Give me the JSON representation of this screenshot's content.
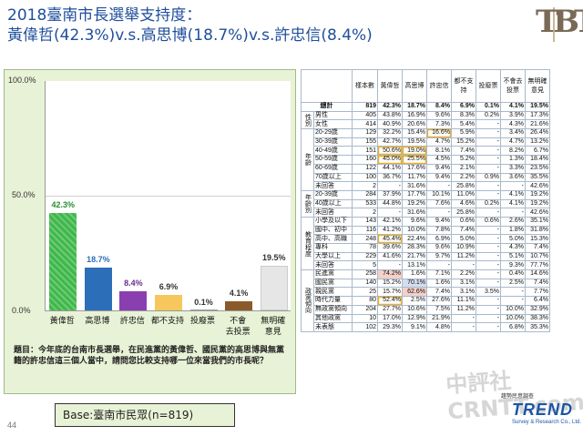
{
  "title": {
    "line1": "2018臺南市長選舉支持度：",
    "line2": "黃偉哲(42.3%)v.s.高思博(18.7%)v.s.許忠信(8.4%)"
  },
  "logo": {
    "text": "TBT"
  },
  "colors": {
    "title": "#1f4e9c",
    "chart_bg": "#e8f2d6",
    "table_border": "#a9b9cc"
  },
  "chart_data": {
    "type": "bar",
    "categories": [
      "黃偉哲",
      "高思博",
      "許忠信",
      "都不支持",
      "投廢票",
      "不會去投票",
      "無明確意見"
    ],
    "category_lines": [
      [
        "黃偉哲"
      ],
      [
        "高思博"
      ],
      [
        "許忠信"
      ],
      [
        "都不支持"
      ],
      [
        "投廢票"
      ],
      [
        "不會",
        "去投票"
      ],
      [
        "無明確",
        "意見"
      ]
    ],
    "values": [
      42.3,
      18.7,
      8.4,
      6.9,
      0.1,
      4.1,
      19.5
    ],
    "value_labels": [
      "42.3%",
      "18.7%",
      "8.4%",
      "6.9%",
      "0.1%",
      "4.1%",
      "19.5%"
    ],
    "bar_colors": [
      "#3fb84a",
      "#2c6fb8",
      "#8a3fb0",
      "#f6c75c",
      "#9aa0a6",
      "#8b5a2b",
      "#e6e6e6"
    ],
    "label_colors": [
      "#2a8c33",
      "#2c6fb8",
      "#6b2d8c",
      "#333333",
      "#333333",
      "#333333",
      "#333333"
    ],
    "yticks": [
      "100.0%",
      "50.0%",
      "0.0%"
    ],
    "ylim": [
      0,
      100
    ]
  },
  "question": "題目：今年底的台南市長選舉，在民進黨的黃偉哲、國民黨的高思博與無黨籍的許忠信這三個人當中，請問您比較支持哪一位來當我們的市長呢？",
  "base": "Base:臺南市民眾(n=819)",
  "page_number": "44",
  "trend": {
    "brand": "TREND",
    "sub": "Survey & Research Co., Ltd.",
    "pre": "趨勢民意調查"
  },
  "watermark": "中評社 CRNTT.com",
  "table": {
    "headers": [
      "樣本數",
      "黃偉哲",
      "高思博",
      "許忠信",
      "都不支持",
      "投廢票",
      "不會去投票",
      "無明確意見"
    ],
    "total": {
      "label": "總計",
      "cells": [
        "819",
        "42.3%",
        "18.7%",
        "8.4%",
        "6.9%",
        "0.1%",
        "4.1%",
        "19.5%"
      ]
    },
    "groups": [
      {
        "name": "性別",
        "rows": [
          {
            "label": "男性",
            "cells": [
              "405",
              "43.8%",
              "16.9%",
              "9.6%",
              "8.3%",
              "0.2%",
              "3.9%",
              "17.3%"
            ]
          },
          {
            "label": "女性",
            "cells": [
              "414",
              "40.9%",
              "20.6%",
              "7.3%",
              "5.4%",
              "-",
              "4.3%",
              "21.6%"
            ]
          }
        ]
      },
      {
        "name": "年齡",
        "rows": [
          {
            "label": "20-29歲",
            "cells": [
              "129",
              "32.2%",
              "15.4%",
              "16.6%",
              "5.9%",
              "-",
              "3.4%",
              "26.4%"
            ]
          },
          {
            "label": "30-39歲",
            "cells": [
              "155",
              "42.7%",
              "19.5%",
              "4.7%",
              "15.2%",
              "-",
              "4.7%",
              "13.2%"
            ]
          },
          {
            "label": "40-49歲",
            "cells": [
              "151",
              "50.6%",
              "19.0%",
              "8.1%",
              "7.4%",
              "-",
              "8.2%",
              "6.7%"
            ]
          },
          {
            "label": "50-59歲",
            "cells": [
              "160",
              "45.0%",
              "25.5%",
              "4.5%",
              "5.2%",
              "-",
              "1.3%",
              "18.4%"
            ]
          },
          {
            "label": "60-69歲",
            "cells": [
              "122",
              "44.1%",
              "17.6%",
              "9.4%",
              "2.1%",
              "-",
              "3.3%",
              "23.5%"
            ]
          },
          {
            "label": "70歲以上",
            "cells": [
              "100",
              "36.7%",
              "11.7%",
              "9.4%",
              "2.2%",
              "0.9%",
              "3.6%",
              "35.5%"
            ]
          },
          {
            "label": "未回答",
            "cells": [
              "2",
              "-",
              "31.6%",
              "-",
              "25.8%",
              "-",
              "-",
              "42.6%"
            ]
          }
        ]
      },
      {
        "name": "年齡別",
        "rows": [
          {
            "label": "20-39歲",
            "cells": [
              "284",
              "37.9%",
              "17.7%",
              "10.1%",
              "11.0%",
              "-",
              "4.1%",
              "19.2%"
            ]
          },
          {
            "label": "40歲以上",
            "cells": [
              "533",
              "44.8%",
              "19.2%",
              "7.6%",
              "4.6%",
              "0.2%",
              "4.1%",
              "19.2%"
            ]
          },
          {
            "label": "未回答",
            "cells": [
              "2",
              "-",
              "31.6%",
              "-",
              "25.8%",
              "-",
              "-",
              "42.6%"
            ]
          }
        ]
      },
      {
        "name": "教育程度",
        "rows": [
          {
            "label": "小學及以下",
            "cells": [
              "143",
              "42.1%",
              "9.6%",
              "9.4%",
              "0.6%",
              "0.6%",
              "2.6%",
              "35.1%"
            ]
          },
          {
            "label": "國中、初中",
            "cells": [
              "116",
              "41.2%",
              "10.0%",
              "7.8%",
              "7.4%",
              "-",
              "1.8%",
              "31.8%"
            ]
          },
          {
            "label": "高中、高職",
            "cells": [
              "248",
              "45.4%",
              "22.4%",
              "6.9%",
              "5.0%",
              "-",
              "5.0%",
              "15.3%"
            ]
          },
          {
            "label": "專科",
            "cells": [
              "78",
              "39.6%",
              "28.3%",
              "9.6%",
              "10.9%",
              "-",
              "4.3%",
              "7.4%"
            ]
          },
          {
            "label": "大學以上",
            "cells": [
              "229",
              "41.6%",
              "21.7%",
              "9.7%",
              "11.2%",
              "-",
              "5.1%",
              "10.7%"
            ]
          },
          {
            "label": "未回答",
            "cells": [
              "5",
              "-",
              "13.1%",
              "-",
              "-",
              "-",
              "9.3%",
              "77.7%"
            ]
          }
        ]
      },
      {
        "name": "政黨傾向",
        "rows": [
          {
            "label": "民進黨",
            "cells": [
              "258",
              "74.2%",
              "1.6%",
              "7.1%",
              "2.2%",
              "-",
              "0.4%",
              "14.6%"
            ]
          },
          {
            "label": "國民黨",
            "cells": [
              "140",
              "15.2%",
              "70.1%",
              "1.6%",
              "3.1%",
              "-",
              "2.5%",
              "7.4%"
            ]
          },
          {
            "label": "親民黨",
            "cells": [
              "25",
              "15.7%",
              "62.6%",
              "7.4%",
              "3.1%",
              "3.5%",
              "-",
              "7.7%"
            ]
          },
          {
            "label": "時代力量",
            "cells": [
              "80",
              "52.4%",
              "2.5%",
              "27.6%",
              "11.1%",
              "-",
              "-",
              "6.4%"
            ]
          },
          {
            "label": "無政黨傾向",
            "cells": [
              "204",
              "27.7%",
              "10.6%",
              "7.5%",
              "11.2%",
              "-",
              "10.0%",
              "32.9%"
            ]
          },
          {
            "label": "其他政黨",
            "cells": [
              "10",
              "17.0%",
              "12.9%",
              "21.9%",
              "-",
              "-",
              "10.0%",
              "38.3%"
            ]
          },
          {
            "label": "未表態",
            "cells": [
              "102",
              "29.3%",
              "9.1%",
              "4.8%",
              "-",
              "-",
              "6.8%",
              "35.3%"
            ]
          }
        ]
      }
    ]
  }
}
